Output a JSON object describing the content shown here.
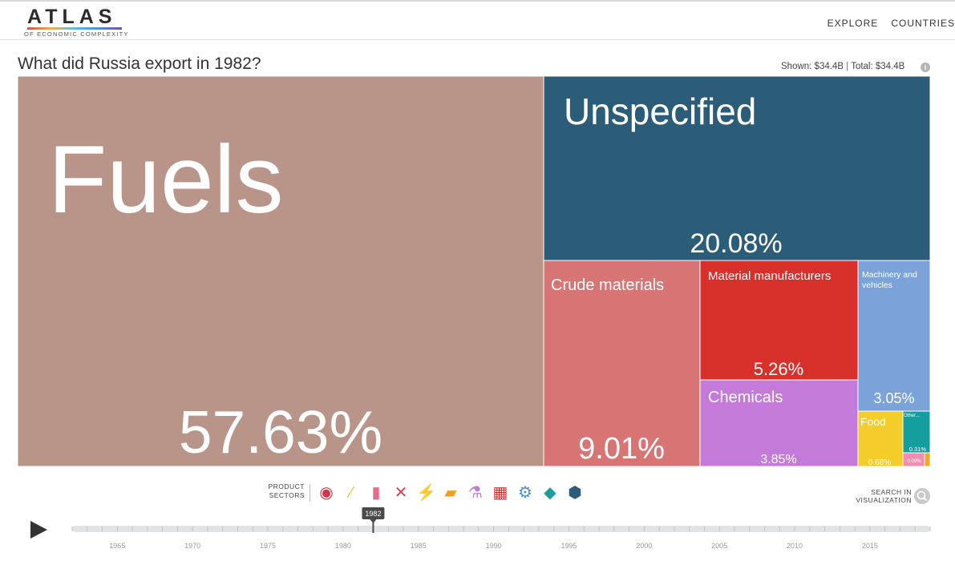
{
  "header": {
    "logo_word": "ATLAS",
    "logo_sub": "OF ECONOMIC COMPLEXITY",
    "nav": [
      "EXPLORE",
      "COUNTRIES"
    ]
  },
  "title": "What did Russia export in 1982?",
  "totals": {
    "shown": "Shown:  $34.4B",
    "total": "Total:  $34.4B"
  },
  "colors": {
    "fuels": "#b99589",
    "unspecified": "#2b5d78",
    "crude": "#d77575",
    "material": "#d8312c",
    "chemicals": "#c37ad8",
    "machinery": "#7ca3d9",
    "food": "#f5cd2b",
    "other": "#159e9e",
    "pink": "#f48bb0",
    "orange": "#f5a623"
  },
  "chart_data": {
    "type": "treemap",
    "title": "What did Russia export in 1982?",
    "unit": "% of total exports",
    "total": "$34.4B",
    "items": [
      {
        "name": "Fuels",
        "value": 57.63,
        "label": "57.63%"
      },
      {
        "name": "Unspecified",
        "value": 20.08,
        "label": "20.08%"
      },
      {
        "name": "Crude materials",
        "value": 9.01,
        "label": "9.01%"
      },
      {
        "name": "Material manufacturers",
        "value": 5.26,
        "label": "5.26%"
      },
      {
        "name": "Chemicals",
        "value": 3.85,
        "label": "3.85%"
      },
      {
        "name": "Machinery and vehicles",
        "value": 3.05,
        "label": "3.05%"
      },
      {
        "name": "Food",
        "value": 0.68,
        "label": "0.68%"
      },
      {
        "name": "Other...",
        "value": 0.31,
        "label": "0.31%"
      },
      {
        "name": "",
        "value": 0.09,
        "label": "0.09%"
      },
      {
        "name": "",
        "value": 0.04,
        "label": ""
      }
    ]
  },
  "sectors": {
    "label": "PRODUCT SECTORS",
    "icons": [
      "services-icon",
      "agriculture-icon",
      "textiles-icon",
      "stone-icon",
      "minerals-icon",
      "metals-icon",
      "chemicals-icon",
      "vehicles-icon",
      "machinery-icon",
      "electronics-icon",
      "other-icon"
    ]
  },
  "search": {
    "label": "SEARCH IN VISUALIZATION"
  },
  "timeline": {
    "start_year": 1962,
    "end_year": 2019,
    "selected_year": "1982",
    "tick_labels": [
      "1965",
      "1970",
      "1975",
      "1980",
      "1985",
      "1990",
      "1995",
      "2000",
      "2005",
      "2010",
      "2015"
    ]
  }
}
